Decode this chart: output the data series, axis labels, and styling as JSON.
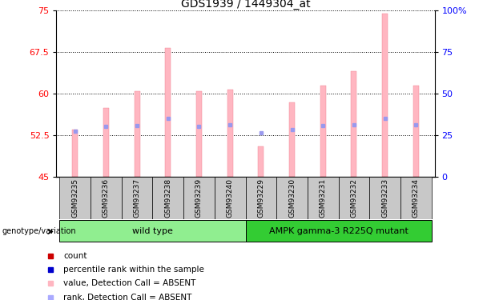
{
  "title": "GDS1939 / 1449304_at",
  "samples": [
    "GSM93235",
    "GSM93236",
    "GSM93237",
    "GSM93238",
    "GSM93239",
    "GSM93240",
    "GSM93229",
    "GSM93230",
    "GSM93231",
    "GSM93232",
    "GSM93233",
    "GSM93234"
  ],
  "bar_values": [
    53.5,
    57.5,
    60.5,
    68.2,
    60.5,
    60.8,
    50.5,
    58.5,
    61.5,
    64.0,
    74.5,
    61.5
  ],
  "blue_dot_values": [
    53.2,
    54.1,
    54.2,
    55.6,
    54.1,
    54.4,
    53.0,
    53.6,
    54.2,
    54.4,
    55.5,
    54.4
  ],
  "ylim_left": [
    45,
    75
  ],
  "ylim_right": [
    0,
    100
  ],
  "yticks_left": [
    45,
    52.5,
    60,
    67.5,
    75
  ],
  "yticks_right": [
    0,
    25,
    50,
    75,
    100
  ],
  "bar_color": "#FFB6C1",
  "blue_square_color": "#9999EE",
  "red_square_color": "#CC0000",
  "group1_label": "wild type",
  "group2_label": "AMPK gamma-3 R225Q mutant",
  "group1_indices": [
    0,
    1,
    2,
    3,
    4,
    5
  ],
  "group2_indices": [
    6,
    7,
    8,
    9,
    10,
    11
  ],
  "group1_bg": "#90EE90",
  "group2_bg": "#33CC33",
  "xlabel_area_bg": "#C8C8C8",
  "genotype_label": "genotype/variation",
  "legend_colors": [
    "#CC0000",
    "#0000CC",
    "#FFB6C1",
    "#AAAAFF"
  ],
  "legend_labels": [
    "count",
    "percentile rank within the sample",
    "value, Detection Call = ABSENT",
    "rank, Detection Call = ABSENT"
  ]
}
